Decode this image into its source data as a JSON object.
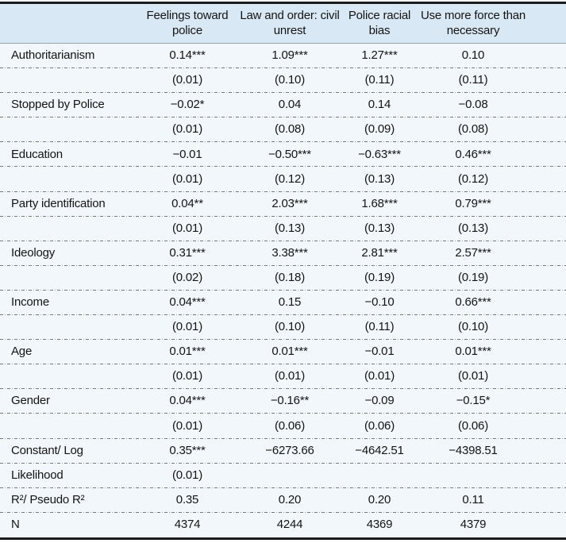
{
  "table": {
    "columns": [
      "Feelings toward police",
      "Law and order: civil unrest",
      "Police racial bias",
      "Use more force than necessary"
    ],
    "rows": [
      {
        "label": "Authoritarianism",
        "values": [
          "0.14***",
          "1.09***",
          "1.27***",
          "0.10"
        ]
      },
      {
        "label": "",
        "values": [
          "(0.01)",
          "(0.10)",
          "(0.11)",
          "(0.11)"
        ]
      },
      {
        "label": "Stopped by Police",
        "values": [
          "−0.02*",
          "0.04",
          "0.14",
          "−0.08"
        ]
      },
      {
        "label": "",
        "values": [
          "(0.01)",
          "(0.08)",
          "(0.09)",
          "(0.08)"
        ]
      },
      {
        "label": "Education",
        "values": [
          "−0.01",
          "−0.50***",
          "−0.63***",
          "0.46***"
        ]
      },
      {
        "label": "",
        "values": [
          "(0.01)",
          "(0.12)",
          "(0.13)",
          "(0.12)"
        ]
      },
      {
        "label": "Party identification",
        "values": [
          "0.04**",
          "2.03***",
          "1.68***",
          "0.79***"
        ]
      },
      {
        "label": "",
        "values": [
          "(0.01)",
          "(0.13)",
          "(0.13)",
          "(0.13)"
        ]
      },
      {
        "label": "Ideology",
        "values": [
          "0.31***",
          "3.38***",
          "2.81***",
          "2.57***"
        ]
      },
      {
        "label": "",
        "values": [
          "(0.02)",
          "(0.18)",
          "(0.19)",
          "(0.19)"
        ]
      },
      {
        "label": "Income",
        "values": [
          "0.04***",
          "0.15",
          "−0.10",
          "0.66***"
        ]
      },
      {
        "label": "",
        "values": [
          "(0.01)",
          "(0.10)",
          "(0.11)",
          "(0.10)"
        ]
      },
      {
        "label": "Age",
        "values": [
          "0.01***",
          "0.01***",
          "−0.01",
          "0.01***"
        ]
      },
      {
        "label": "",
        "values": [
          "(0.01)",
          "(0.01)",
          "(0.01)",
          "(0.01)"
        ]
      },
      {
        "label": "Gender",
        "values": [
          "0.04***",
          "−0.16**",
          "−0.09",
          "−0.15*"
        ]
      },
      {
        "label": "",
        "values": [
          "(0.01)",
          "(0.06)",
          "(0.06)",
          "(0.06)"
        ]
      },
      {
        "label": "Constant/ Log",
        "values": [
          "0.35***",
          "−6273.66",
          "−4642.51",
          "−4398.51"
        ]
      },
      {
        "label": "Likelihood",
        "values": [
          "(0.01)",
          "",
          "",
          ""
        ]
      },
      {
        "label": "R²/ Pseudo R²",
        "values": [
          "0.35",
          "0.20",
          "0.20",
          "0.11"
        ]
      },
      {
        "label": "N",
        "values": [
          "4374",
          "4244",
          "4369",
          "4379"
        ]
      }
    ],
    "colors": {
      "header_bg": "#d9e8f5",
      "body_bg": "#f2f7fb",
      "border": "#1b1b1b",
      "header_rule": "#98a3ae",
      "grid": "#76797c",
      "text": "#141414"
    }
  }
}
